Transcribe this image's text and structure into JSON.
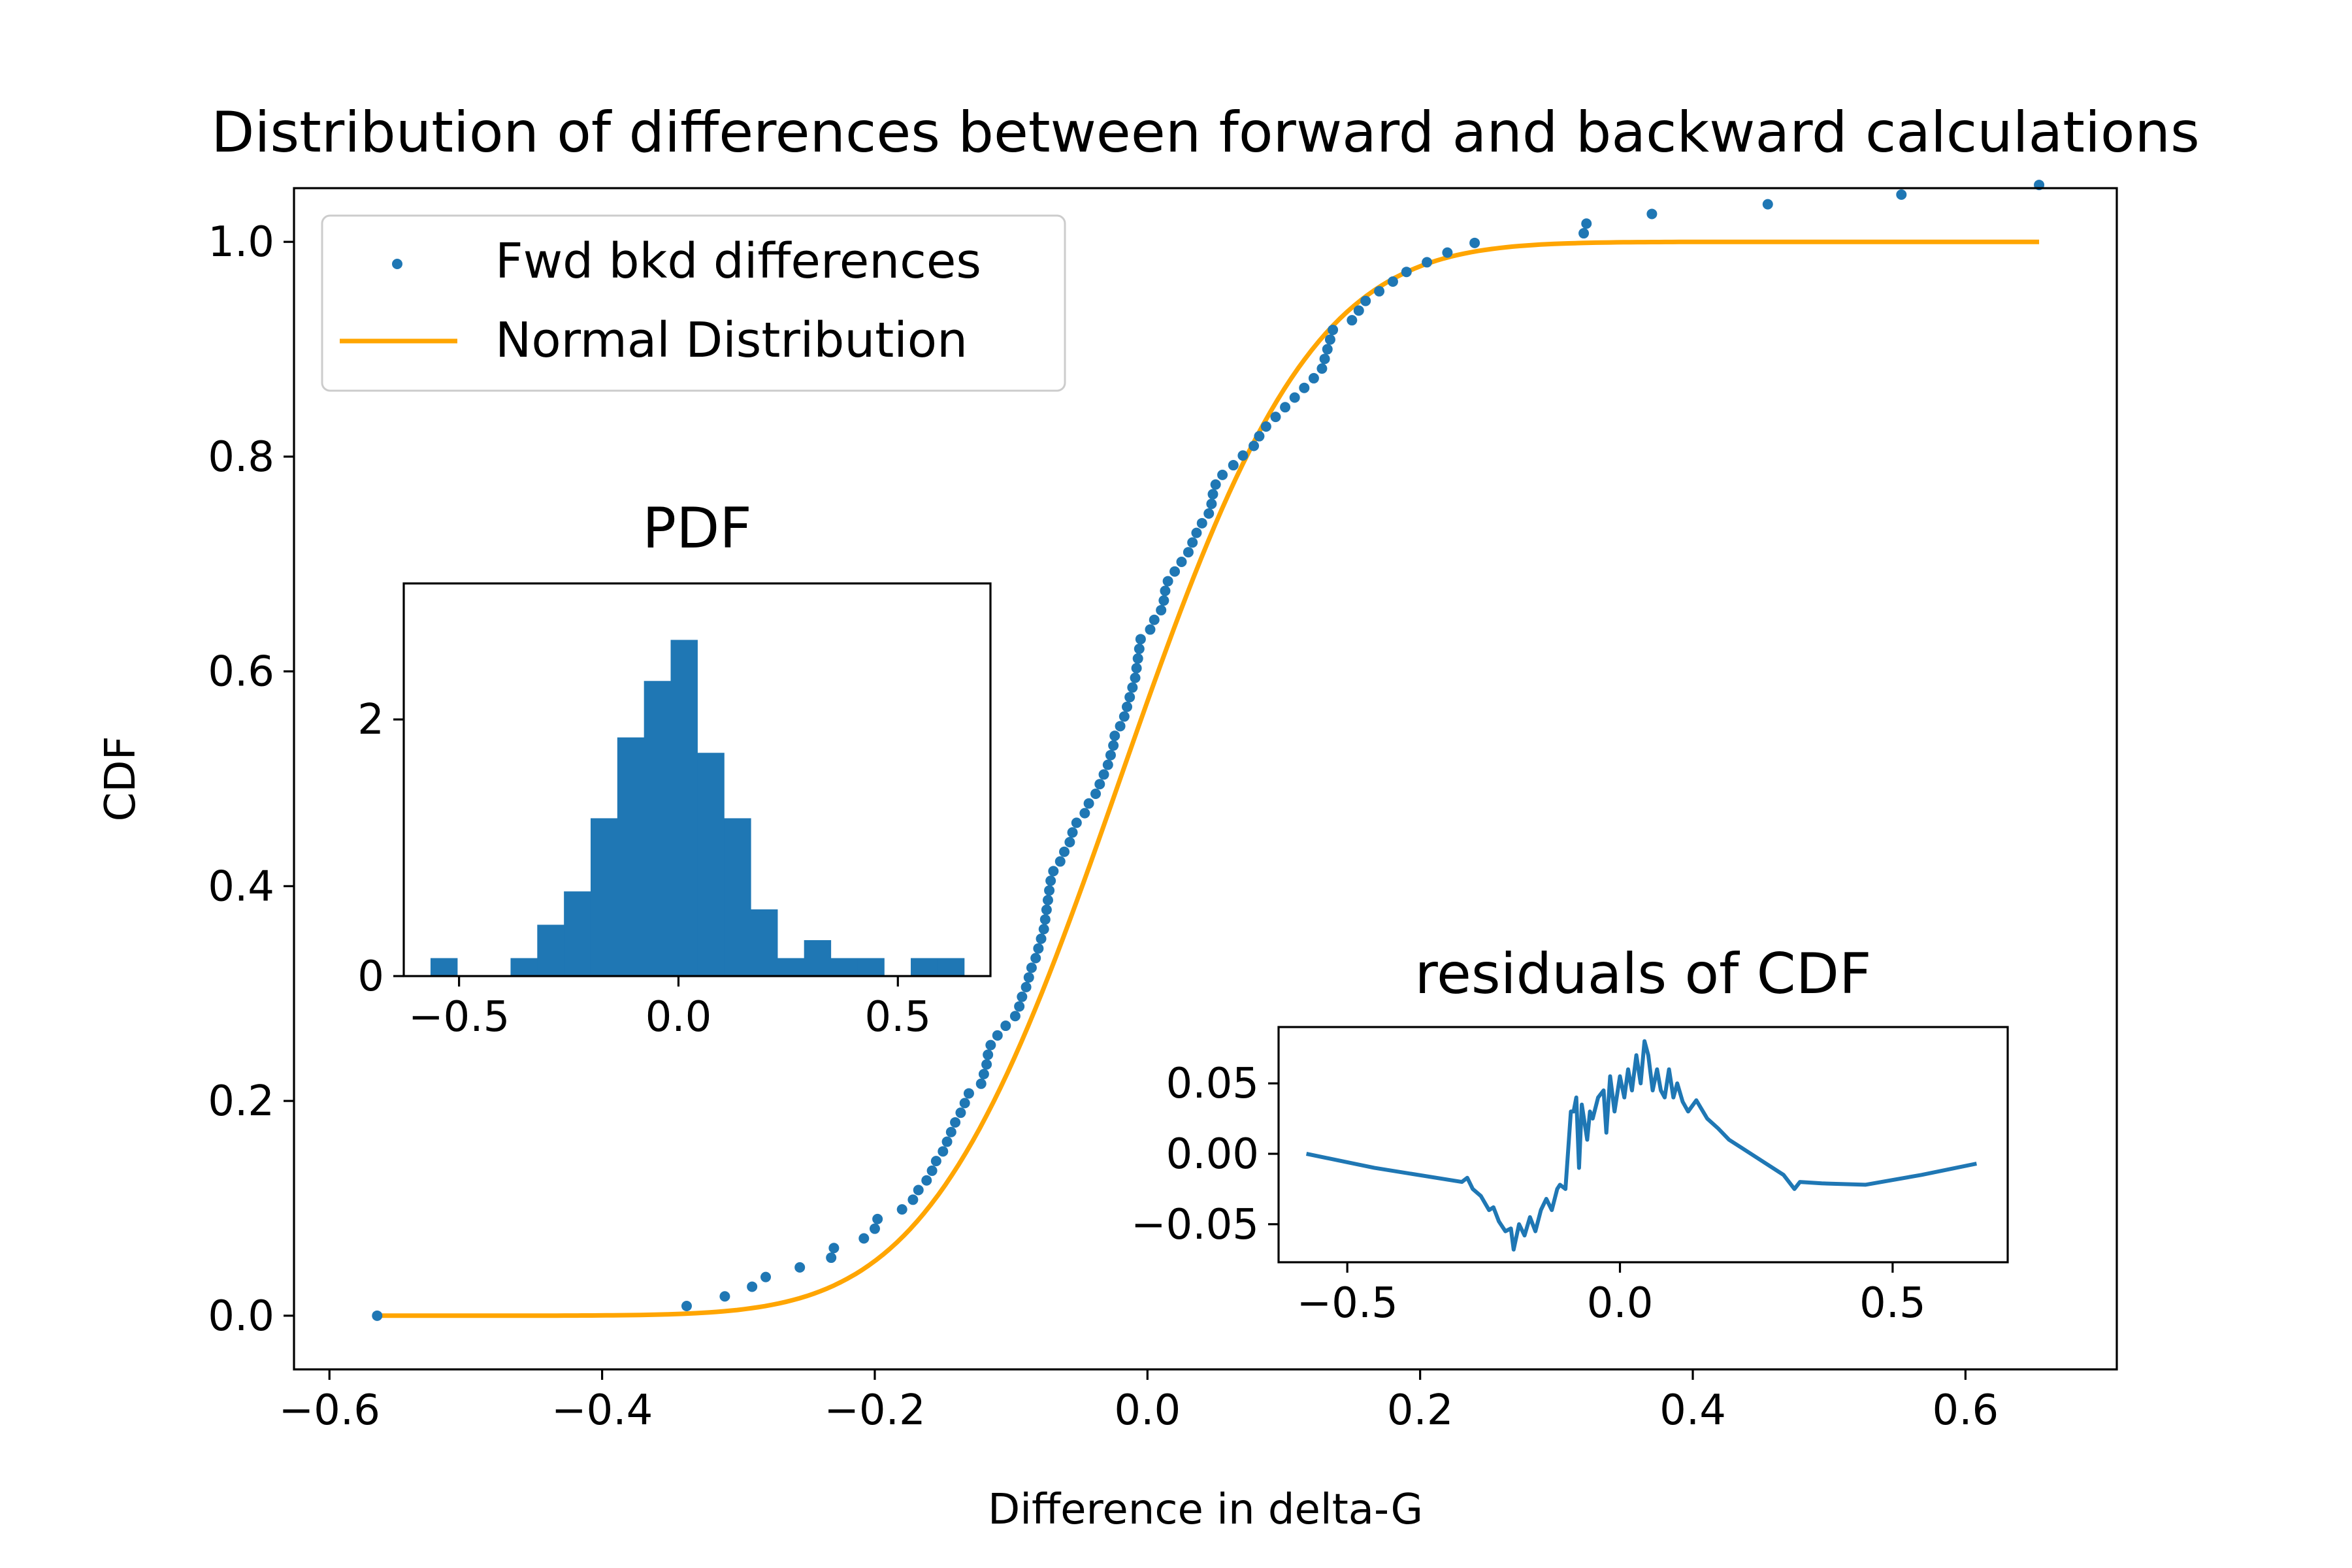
{
  "chart_data": [
    {
      "id": "main",
      "type": "scatter",
      "title": "Distribution of differences between forward and backward calculations",
      "xlabel": "Difference in delta-G",
      "ylabel": "CDF",
      "xlim": [
        -0.626,
        0.711
      ],
      "ylim": [
        -0.05,
        1.05
      ],
      "xticks": [
        -0.6,
        -0.4,
        -0.2,
        0.0,
        0.2,
        0.4,
        0.6
      ],
      "xtick_labels": [
        "−0.6",
        "−0.4",
        "−0.2",
        "0.0",
        "0.2",
        "0.4",
        "0.6"
      ],
      "yticks": [
        0.0,
        0.2,
        0.4,
        0.6,
        0.8,
        1.0
      ],
      "ytick_labels": [
        "0.0",
        "0.2",
        "0.4",
        "0.6",
        "0.8",
        "1.0"
      ],
      "grid": false,
      "legend": {
        "placement": "top-left",
        "entries": [
          "Fwd bkd differences",
          "Normal Distribution"
        ]
      },
      "series": [
        {
          "name": "Fwd bkd differences",
          "kind": "scatter",
          "color": "#1f77b4",
          "points": [
            [
              -0.565,
              0.0
            ],
            [
              -0.338,
              0.009
            ],
            [
              -0.31,
              0.018
            ],
            [
              -0.29,
              0.027
            ],
            [
              -0.28,
              0.036
            ],
            [
              -0.255,
              0.045
            ],
            [
              -0.232,
              0.054
            ],
            [
              -0.23,
              0.063
            ],
            [
              -0.208,
              0.072
            ],
            [
              -0.2,
              0.081
            ],
            [
              -0.198,
              0.09
            ],
            [
              -0.18,
              0.099
            ],
            [
              -0.172,
              0.108
            ],
            [
              -0.168,
              0.117
            ],
            [
              -0.162,
              0.126
            ],
            [
              -0.158,
              0.135
            ],
            [
              -0.155,
              0.144
            ],
            [
              -0.15,
              0.153
            ],
            [
              -0.147,
              0.162
            ],
            [
              -0.144,
              0.171
            ],
            [
              -0.141,
              0.18
            ],
            [
              -0.137,
              0.189
            ],
            [
              -0.134,
              0.198
            ],
            [
              -0.131,
              0.207
            ],
            [
              -0.122,
              0.216
            ],
            [
              -0.12,
              0.225
            ],
            [
              -0.118,
              0.234
            ],
            [
              -0.117,
              0.243
            ],
            [
              -0.115,
              0.252
            ],
            [
              -0.11,
              0.261
            ],
            [
              -0.104,
              0.27
            ],
            [
              -0.097,
              0.279
            ],
            [
              -0.094,
              0.288
            ],
            [
              -0.092,
              0.297
            ],
            [
              -0.089,
              0.306
            ],
            [
              -0.087,
              0.315
            ],
            [
              -0.085,
              0.324
            ],
            [
              -0.082,
              0.333
            ],
            [
              -0.08,
              0.342
            ],
            [
              -0.078,
              0.351
            ],
            [
              -0.076,
              0.36
            ],
            [
              -0.075,
              0.369
            ],
            [
              -0.074,
              0.378
            ],
            [
              -0.073,
              0.387
            ],
            [
              -0.072,
              0.396
            ],
            [
              -0.071,
              0.405
            ],
            [
              -0.069,
              0.414
            ],
            [
              -0.064,
              0.423
            ],
            [
              -0.061,
              0.432
            ],
            [
              -0.057,
              0.441
            ],
            [
              -0.055,
              0.45
            ],
            [
              -0.052,
              0.459
            ],
            [
              -0.046,
              0.468
            ],
            [
              -0.043,
              0.477
            ],
            [
              -0.038,
              0.486
            ],
            [
              -0.035,
              0.495
            ],
            [
              -0.032,
              0.504
            ],
            [
              -0.029,
              0.513
            ],
            [
              -0.027,
              0.522
            ],
            [
              -0.025,
              0.531
            ],
            [
              -0.024,
              0.54
            ],
            [
              -0.02,
              0.549
            ],
            [
              -0.017,
              0.558
            ],
            [
              -0.015,
              0.567
            ],
            [
              -0.013,
              0.576
            ],
            [
              -0.011,
              0.585
            ],
            [
              -0.009,
              0.594
            ],
            [
              -0.008,
              0.603
            ],
            [
              -0.007,
              0.612
            ],
            [
              -0.006,
              0.621
            ],
            [
              -0.005,
              0.63
            ],
            [
              0.002,
              0.639
            ],
            [
              0.005,
              0.648
            ],
            [
              0.01,
              0.657
            ],
            [
              0.012,
              0.666
            ],
            [
              0.013,
              0.675
            ],
            [
              0.015,
              0.684
            ],
            [
              0.02,
              0.693
            ],
            [
              0.025,
              0.702
            ],
            [
              0.03,
              0.711
            ],
            [
              0.033,
              0.72
            ],
            [
              0.036,
              0.729
            ],
            [
              0.04,
              0.738
            ],
            [
              0.045,
              0.747
            ],
            [
              0.047,
              0.756
            ],
            [
              0.048,
              0.765
            ],
            [
              0.05,
              0.774
            ],
            [
              0.055,
              0.783
            ],
            [
              0.063,
              0.792
            ],
            [
              0.07,
              0.801
            ],
            [
              0.078,
              0.81
            ],
            [
              0.082,
              0.819
            ],
            [
              0.087,
              0.828
            ],
            [
              0.094,
              0.837
            ],
            [
              0.101,
              0.846
            ],
            [
              0.108,
              0.855
            ],
            [
              0.115,
              0.864
            ],
            [
              0.122,
              0.873
            ],
            [
              0.128,
              0.882
            ],
            [
              0.13,
              0.891
            ],
            [
              0.132,
              0.9
            ],
            [
              0.134,
              0.909
            ],
            [
              0.136,
              0.918
            ],
            [
              0.15,
              0.927
            ],
            [
              0.155,
              0.936
            ],
            [
              0.16,
              0.945
            ],
            [
              0.17,
              0.954
            ],
            [
              0.18,
              0.963
            ],
            [
              0.19,
              0.972
            ],
            [
              0.205,
              0.981
            ],
            [
              0.22,
              0.99
            ],
            [
              0.24,
              0.999
            ],
            [
              0.32,
              1.008
            ],
            [
              0.322,
              1.017
            ],
            [
              0.37,
              1.026
            ],
            [
              0.455,
              1.035
            ],
            [
              0.553,
              1.044
            ],
            [
              0.654,
              1.053
            ]
          ]
        },
        {
          "name": "Normal Distribution",
          "kind": "line",
          "color": "#ffa500",
          "distribution": {
            "mean": -0.02,
            "std": 0.11
          },
          "x_range": [
            -0.565,
            0.654
          ]
        }
      ]
    },
    {
      "id": "pdf",
      "type": "bar",
      "title": "PDF",
      "xlim": [
        -0.626,
        0.711
      ],
      "ylim": [
        0,
        3.06
      ],
      "xticks": [
        -0.5,
        0.0,
        0.5
      ],
      "xtick_labels": [
        "−0.5",
        "0.0",
        "0.5"
      ],
      "yticks": [
        0,
        2
      ],
      "ytick_labels": [
        "0",
        "2"
      ],
      "bin_width": 0.0608,
      "bin_start": -0.565,
      "values": [
        0.14,
        0,
        0,
        0.14,
        0.4,
        0.66,
        1.23,
        1.86,
        2.3,
        2.62,
        1.74,
        1.23,
        0.52,
        0.14,
        0.28,
        0.14,
        0.14,
        0,
        0.14,
        0.14
      ],
      "color": "#1f77b4"
    },
    {
      "id": "residuals",
      "type": "line",
      "title": "residuals of CDF",
      "xlim": [
        -0.626,
        0.711
      ],
      "ylim": [
        -0.077,
        0.09
      ],
      "xticks": [
        -0.5,
        0.0,
        0.5
      ],
      "xtick_labels": [
        "−0.5",
        "0.0",
        "0.5"
      ],
      "yticks": [
        0.05,
        0.0,
        -0.05
      ],
      "ytick_labels": [
        "0.05",
        "0.00",
        "−0.05"
      ],
      "color": "#1f77b4",
      "points": [
        [
          -0.575,
          0.0
        ],
        [
          -0.45,
          -0.01
        ],
        [
          -0.29,
          -0.02
        ],
        [
          -0.28,
          -0.017
        ],
        [
          -0.27,
          -0.025
        ],
        [
          -0.255,
          -0.03
        ],
        [
          -0.24,
          -0.04
        ],
        [
          -0.232,
          -0.038
        ],
        [
          -0.222,
          -0.048
        ],
        [
          -0.21,
          -0.055
        ],
        [
          -0.2,
          -0.053
        ],
        [
          -0.195,
          -0.068
        ],
        [
          -0.185,
          -0.05
        ],
        [
          -0.175,
          -0.058
        ],
        [
          -0.165,
          -0.045
        ],
        [
          -0.155,
          -0.055
        ],
        [
          -0.145,
          -0.04
        ],
        [
          -0.135,
          -0.032
        ],
        [
          -0.125,
          -0.04
        ],
        [
          -0.115,
          -0.025
        ],
        [
          -0.11,
          -0.022
        ],
        [
          -0.1,
          -0.025
        ],
        [
          -0.09,
          0.03
        ],
        [
          -0.085,
          0.03
        ],
        [
          -0.08,
          0.04
        ],
        [
          -0.075,
          -0.01
        ],
        [
          -0.07,
          0.035
        ],
        [
          -0.06,
          0.01
        ],
        [
          -0.055,
          0.03
        ],
        [
          -0.05,
          0.025
        ],
        [
          -0.04,
          0.04
        ],
        [
          -0.03,
          0.045
        ],
        [
          -0.025,
          0.015
        ],
        [
          -0.018,
          0.055
        ],
        [
          -0.01,
          0.03
        ],
        [
          0.0,
          0.055
        ],
        [
          0.008,
          0.04
        ],
        [
          0.015,
          0.06
        ],
        [
          0.022,
          0.045
        ],
        [
          0.03,
          0.07
        ],
        [
          0.038,
          0.05
        ],
        [
          0.045,
          0.08
        ],
        [
          0.052,
          0.07
        ],
        [
          0.06,
          0.045
        ],
        [
          0.068,
          0.06
        ],
        [
          0.075,
          0.045
        ],
        [
          0.082,
          0.04
        ],
        [
          0.09,
          0.06
        ],
        [
          0.098,
          0.04
        ],
        [
          0.105,
          0.05
        ],
        [
          0.115,
          0.037
        ],
        [
          0.125,
          0.03
        ],
        [
          0.14,
          0.038
        ],
        [
          0.16,
          0.025
        ],
        [
          0.18,
          0.018
        ],
        [
          0.2,
          0.01
        ],
        [
          0.24,
          0.0
        ],
        [
          0.3,
          -0.015
        ],
        [
          0.32,
          -0.025
        ],
        [
          0.33,
          -0.02
        ],
        [
          0.37,
          -0.021
        ],
        [
          0.45,
          -0.022
        ],
        [
          0.553,
          -0.015
        ],
        [
          0.654,
          -0.007
        ]
      ]
    }
  ]
}
